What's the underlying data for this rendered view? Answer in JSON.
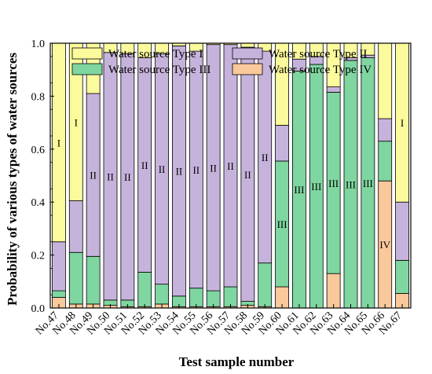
{
  "chart_data": {
    "type": "bar",
    "stacked": true,
    "xlabel": "Test sample number",
    "ylabel": "Probability of various types of water sources",
    "ylim": [
      0,
      1.0
    ],
    "yticks": [
      "0.0",
      "0.2",
      "0.4",
      "0.6",
      "0.8",
      "1.0"
    ],
    "categories": [
      "No.47",
      "No.48",
      "No.49",
      "No.50",
      "No.51",
      "No.52",
      "No.53",
      "No.54",
      "No.55",
      "No.56",
      "No.57",
      "No.58",
      "No.59",
      "No.60",
      "No.61",
      "No.62",
      "No.63",
      "No.64",
      "No.65",
      "No.66",
      "No.67"
    ],
    "series": [
      {
        "name": "Water source Type IV",
        "color": "#f9c89b",
        "values": [
          0.04,
          0.015,
          0.015,
          0.01,
          0.005,
          0.005,
          0.015,
          0.005,
          0.005,
          0.005,
          0.005,
          0.01,
          0.005,
          0.08,
          0.0,
          0.0,
          0.13,
          0.0,
          0.0,
          0.48,
          0.055
        ]
      },
      {
        "name": "Water source Type III",
        "color": "#7fd6a0",
        "values": [
          0.025,
          0.195,
          0.18,
          0.02,
          0.025,
          0.13,
          0.075,
          0.04,
          0.07,
          0.06,
          0.075,
          0.015,
          0.165,
          0.475,
          0.895,
          0.92,
          0.685,
          0.935,
          0.945,
          0.15,
          0.125
        ]
      },
      {
        "name": "Water source Type II",
        "color": "#c6b3dc",
        "values": [
          0.185,
          0.195,
          0.615,
          0.935,
          0.93,
          0.81,
          0.87,
          0.945,
          0.895,
          0.93,
          0.915,
          0.96,
          0.8,
          0.135,
          0.045,
          0.03,
          0.02,
          0.01,
          0.01,
          0.085,
          0.22
        ]
      },
      {
        "name": "Water source Type I",
        "color": "#fbfa9c",
        "values": [
          0.75,
          0.595,
          0.19,
          0.035,
          0.04,
          0.055,
          0.04,
          0.01,
          0.03,
          0.005,
          0.005,
          0.015,
          0.03,
          0.31,
          0.06,
          0.05,
          0.165,
          0.055,
          0.045,
          0.285,
          0.6
        ]
      }
    ],
    "legend": {
      "placement": "top",
      "entries": [
        "Water source Type I",
        "Water source Type II",
        "Water source Type III",
        "Water source Type IV"
      ]
    },
    "annotations": [
      {
        "category": "No.47",
        "text": "I"
      },
      {
        "category": "No.48",
        "text": "I"
      },
      {
        "category": "No.49",
        "text": "II"
      },
      {
        "category": "No.50",
        "text": "II"
      },
      {
        "category": "No.51",
        "text": "II"
      },
      {
        "category": "No.52",
        "text": "II"
      },
      {
        "category": "No.53",
        "text": "II"
      },
      {
        "category": "No.54",
        "text": "II"
      },
      {
        "category": "No.55",
        "text": "II"
      },
      {
        "category": "No.56",
        "text": "II"
      },
      {
        "category": "No.57",
        "text": "II"
      },
      {
        "category": "No.58",
        "text": "II"
      },
      {
        "category": "No.59",
        "text": "II"
      },
      {
        "category": "No.60",
        "text": "III"
      },
      {
        "category": "No.61",
        "text": "III"
      },
      {
        "category": "No.62",
        "text": "III"
      },
      {
        "category": "No.63",
        "text": "III"
      },
      {
        "category": "No.64",
        "text": "III"
      },
      {
        "category": "No.65",
        "text": "III"
      },
      {
        "category": "No.66",
        "text": "IV"
      },
      {
        "category": "No.67",
        "text": "I"
      }
    ]
  }
}
